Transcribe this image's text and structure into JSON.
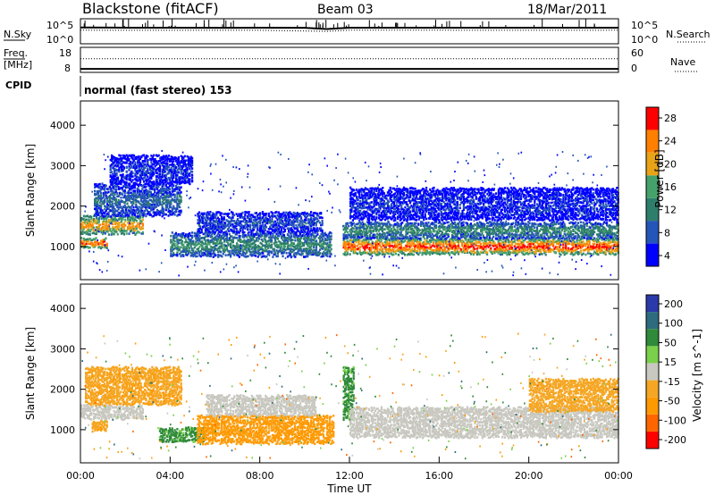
{
  "header": {
    "title": "Blackstone (fitACF)",
    "beam": "Beam 03",
    "date": "18/Mar/2011"
  },
  "chart_data": [
    {
      "type": "line",
      "panel": "noise",
      "left_label": "N.Sky",
      "right_label": "N.Search",
      "left_ticks": [
        "10^5",
        "10^0"
      ],
      "right_ticks": [
        "10^5",
        "10^0"
      ],
      "series": [
        {
          "name": "N.Sky",
          "style": "solid",
          "x": [
            "00:00",
            "02:00",
            "04:00",
            "06:00",
            "08:00",
            "10:00",
            "11:00",
            "12:00",
            "14:00",
            "16:00",
            "18:00",
            "20:00",
            "22:00",
            "24:00"
          ],
          "y": [
            3000,
            2500,
            2600,
            2400,
            2500,
            2400,
            1200,
            2600,
            2500,
            2600,
            2500,
            2600,
            2500,
            2600
          ]
        },
        {
          "name": "N.Search",
          "style": "dotted",
          "x": [
            "00:00",
            "04:00",
            "08:00",
            "11:00",
            "12:00",
            "16:00",
            "20:00",
            "24:00"
          ],
          "y": [
            600,
            550,
            560,
            300,
            600,
            580,
            570,
            600
          ]
        }
      ]
    },
    {
      "type": "line",
      "panel": "frequency",
      "left_label": "Freq.",
      "left_unit": "[MHz]",
      "right_label": "Nave",
      "left_ticks": [
        "18",
        "8"
      ],
      "right_ticks": [
        "60",
        "0"
      ],
      "series": [
        {
          "name": "Freq.",
          "style": "solid",
          "x": [
            "00:00",
            "24:00"
          ],
          "y": [
            8.8,
            8.8
          ]
        },
        {
          "name": "Nave",
          "style": "dotted",
          "x": [
            "00:00",
            "24:00"
          ],
          "y": [
            33,
            33
          ]
        }
      ]
    },
    {
      "type": "table",
      "panel": "cpid",
      "label": "CPID",
      "text": "normal (fast stereo) 153"
    },
    {
      "type": "heatmap",
      "panel": "power",
      "xlabel": "",
      "ylabel": "Slant Range [km]",
      "xlim": [
        0,
        24
      ],
      "ylim": [
        180,
        4600
      ],
      "yticks": [
        "1000",
        "2000",
        "3000",
        "4000"
      ],
      "colorbar_label": "Power [dB]",
      "colorbar_ticks": [
        "28",
        "24",
        "20",
        "16",
        "12",
        "8",
        "4"
      ],
      "colors": [
        "#0000ff",
        "#2455b8",
        "#2e7e6c",
        "#45a16a",
        "#e8a317",
        "#ff8000",
        "#ff0000"
      ],
      "bands": [
        {
          "t0": 0.0,
          "t1": 1.2,
          "r0": 1000,
          "r1": 1250,
          "peak": 28
        },
        {
          "t0": 0.0,
          "t1": 2.8,
          "r0": 1350,
          "r1": 1800,
          "peak": 24
        },
        {
          "t0": 0.6,
          "t1": 4.5,
          "r0": 1800,
          "r1": 2600,
          "peak": 10
        },
        {
          "t0": 1.3,
          "t1": 5.0,
          "r0": 2600,
          "r1": 3300,
          "peak": 6
        },
        {
          "t0": 4.0,
          "t1": 11.2,
          "r0": 800,
          "r1": 1400,
          "peak": 14
        },
        {
          "t0": 5.2,
          "t1": 10.8,
          "r0": 1400,
          "r1": 1900,
          "peak": 8
        },
        {
          "t0": 11.7,
          "t1": 24.0,
          "r0": 850,
          "r1": 1250,
          "peak": 28
        },
        {
          "t0": 11.7,
          "t1": 24.0,
          "r0": 1250,
          "r1": 1650,
          "peak": 14
        },
        {
          "t0": 12.0,
          "t1": 24.0,
          "r0": 1700,
          "r1": 2500,
          "peak": 6
        }
      ]
    },
    {
      "type": "heatmap",
      "panel": "velocity",
      "xlabel": "Time UT",
      "ylabel": "Slant Range [km]",
      "xlim": [
        0,
        24
      ],
      "ylim": [
        180,
        4600
      ],
      "xticks": [
        "00:00",
        "04:00",
        "08:00",
        "12:00",
        "16:00",
        "20:00",
        "00:00"
      ],
      "yticks": [
        "1000",
        "2000",
        "3000",
        "4000"
      ],
      "colorbar_label": "Velocity [m s^-1]",
      "colorbar_ticks": [
        "200",
        "100",
        "50",
        "15",
        "-15",
        "-50",
        "-100",
        "-200"
      ],
      "colors": [
        "#ff0000",
        "#ff6600",
        "#ff9900",
        "#f5a623",
        "#c8c8c0",
        "#7ad04a",
        "#2f8a3a",
        "#2f6b7e",
        "#2a3aa8"
      ],
      "bands": [
        {
          "t0": 0.0,
          "t1": 2.8,
          "r0": 1300,
          "r1": 1650,
          "v": 0
        },
        {
          "t0": 0.2,
          "t1": 4.5,
          "r0": 1650,
          "r1": 2600,
          "v": -40
        },
        {
          "t0": 0.5,
          "t1": 1.2,
          "r0": 1000,
          "r1": 1250,
          "v": -40
        },
        {
          "t0": 3.5,
          "t1": 5.5,
          "r0": 750,
          "r1": 1100,
          "v": 60
        },
        {
          "t0": 5.2,
          "t1": 11.3,
          "r0": 700,
          "r1": 1400,
          "v": -60
        },
        {
          "t0": 5.6,
          "t1": 10.5,
          "r0": 1400,
          "r1": 1900,
          "v": 0
        },
        {
          "t0": 11.7,
          "t1": 12.2,
          "r0": 1300,
          "r1": 2600,
          "v": 60
        },
        {
          "t0": 12.0,
          "t1": 24.0,
          "r0": 850,
          "r1": 1600,
          "v": 0
        },
        {
          "t0": 20.0,
          "t1": 24.0,
          "r0": 1500,
          "r1": 2300,
          "v": -30
        }
      ]
    }
  ]
}
